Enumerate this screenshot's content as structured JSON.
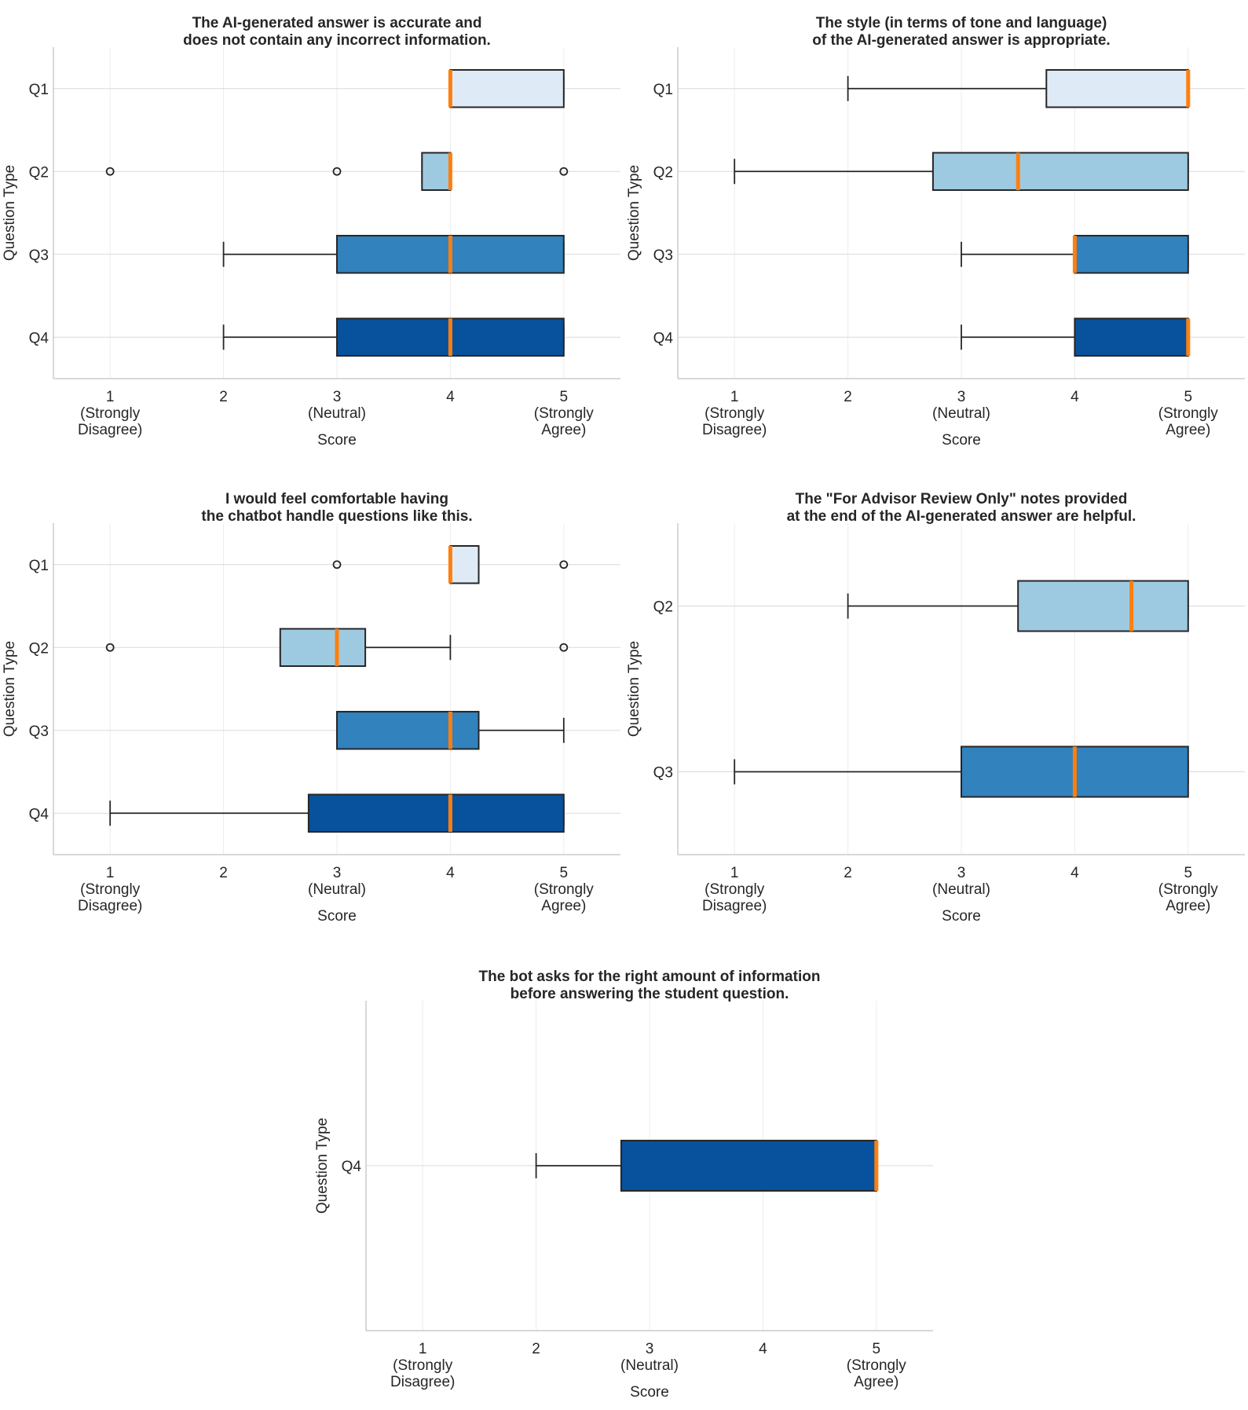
{
  "colors": {
    "Q1": "#deebf7",
    "Q2": "#9ecae1",
    "Q3": "#3182bd",
    "Q4": "#08519c",
    "median": "#ff7f0e",
    "outline": "#262626",
    "grid": "#d9d9d9",
    "spine": "#cccccc"
  },
  "chart_data": [
    {
      "type": "box",
      "orientation": "horizontal",
      "title_lines": [
        "The AI-generated answer is accurate and",
        "does not contain any incorrect information."
      ],
      "xlabel": "Score",
      "ylabel": "Question Type",
      "xlim": [
        0.5,
        5.5
      ],
      "x_ticks": [
        {
          "value": 1,
          "lines": [
            "1",
            "(Strongly",
            "Disagree)"
          ]
        },
        {
          "value": 2,
          "lines": [
            "2"
          ]
        },
        {
          "value": 3,
          "lines": [
            "3",
            "(Neutral)"
          ]
        },
        {
          "value": 4,
          "lines": [
            "4"
          ]
        },
        {
          "value": 5,
          "lines": [
            "5",
            "(Strongly",
            "Agree)"
          ]
        }
      ],
      "categories": [
        "Q1",
        "Q2",
        "Q3",
        "Q4"
      ],
      "series": [
        {
          "category": "Q1",
          "whisker_low": 4,
          "q1": 4,
          "median": 4,
          "q3": 5,
          "whisker_high": 5,
          "outliers": []
        },
        {
          "category": "Q2",
          "whisker_low": 3.75,
          "q1": 3.75,
          "median": 4,
          "q3": 4,
          "whisker_high": 4,
          "outliers": [
            1,
            3,
            5
          ]
        },
        {
          "category": "Q3",
          "whisker_low": 2,
          "q1": 3,
          "median": 4,
          "q3": 5,
          "whisker_high": 5,
          "outliers": []
        },
        {
          "category": "Q4",
          "whisker_low": 2,
          "q1": 3,
          "median": 4,
          "q3": 5,
          "whisker_high": 5,
          "outliers": []
        }
      ]
    },
    {
      "type": "box",
      "orientation": "horizontal",
      "title_lines": [
        "The style (in terms of tone and language)",
        "of the AI-generated answer is appropriate."
      ],
      "xlabel": "Score",
      "ylabel": "Question Type",
      "xlim": [
        0.5,
        5.5
      ],
      "x_ticks": [
        {
          "value": 1,
          "lines": [
            "1",
            "(Strongly",
            "Disagree)"
          ]
        },
        {
          "value": 2,
          "lines": [
            "2"
          ]
        },
        {
          "value": 3,
          "lines": [
            "3",
            "(Neutral)"
          ]
        },
        {
          "value": 4,
          "lines": [
            "4"
          ]
        },
        {
          "value": 5,
          "lines": [
            "5",
            "(Strongly",
            "Agree)"
          ]
        }
      ],
      "categories": [
        "Q1",
        "Q2",
        "Q3",
        "Q4"
      ],
      "series": [
        {
          "category": "Q1",
          "whisker_low": 2,
          "q1": 3.75,
          "median": 5,
          "q3": 5,
          "whisker_high": 5,
          "outliers": []
        },
        {
          "category": "Q2",
          "whisker_low": 1,
          "q1": 2.75,
          "median": 3.5,
          "q3": 5,
          "whisker_high": 5,
          "outliers": []
        },
        {
          "category": "Q3",
          "whisker_low": 3,
          "q1": 4,
          "median": 4,
          "q3": 5,
          "whisker_high": 5,
          "outliers": []
        },
        {
          "category": "Q4",
          "whisker_low": 3,
          "q1": 4,
          "median": 5,
          "q3": 5,
          "whisker_high": 5,
          "outliers": []
        }
      ]
    },
    {
      "type": "box",
      "orientation": "horizontal",
      "title_lines": [
        "I would feel comfortable having",
        "the chatbot handle questions like this."
      ],
      "xlabel": "Score",
      "ylabel": "Question Type",
      "xlim": [
        0.5,
        5.5
      ],
      "x_ticks": [
        {
          "value": 1,
          "lines": [
            "1",
            "(Strongly",
            "Disagree)"
          ]
        },
        {
          "value": 2,
          "lines": [
            "2"
          ]
        },
        {
          "value": 3,
          "lines": [
            "3",
            "(Neutral)"
          ]
        },
        {
          "value": 4,
          "lines": [
            "4"
          ]
        },
        {
          "value": 5,
          "lines": [
            "5",
            "(Strongly",
            "Agree)"
          ]
        }
      ],
      "categories": [
        "Q1",
        "Q2",
        "Q3",
        "Q4"
      ],
      "series": [
        {
          "category": "Q1",
          "whisker_low": 4,
          "q1": 4,
          "median": 4,
          "q3": 4.25,
          "whisker_high": 4.25,
          "outliers": [
            3,
            5
          ]
        },
        {
          "category": "Q2",
          "whisker_low": 2.5,
          "q1": 2.5,
          "median": 3,
          "q3": 3.25,
          "whisker_high": 4,
          "outliers": [
            1,
            5
          ]
        },
        {
          "category": "Q3",
          "whisker_low": 3,
          "q1": 3,
          "median": 4,
          "q3": 4.25,
          "whisker_high": 5,
          "outliers": []
        },
        {
          "category": "Q4",
          "whisker_low": 1,
          "q1": 2.75,
          "median": 4,
          "q3": 5,
          "whisker_high": 5,
          "outliers": []
        }
      ]
    },
    {
      "type": "box",
      "orientation": "horizontal",
      "title_lines": [
        "The \"For Advisor Review Only\" notes provided",
        "at the end of the AI-generated answer are helpful."
      ],
      "xlabel": "Score",
      "ylabel": "Question Type",
      "xlim": [
        0.5,
        5.5
      ],
      "x_ticks": [
        {
          "value": 1,
          "lines": [
            "1",
            "(Strongly",
            "Disagree)"
          ]
        },
        {
          "value": 2,
          "lines": [
            "2"
          ]
        },
        {
          "value": 3,
          "lines": [
            "3",
            "(Neutral)"
          ]
        },
        {
          "value": 4,
          "lines": [
            "4"
          ]
        },
        {
          "value": 5,
          "lines": [
            "5",
            "(Strongly",
            "Agree)"
          ]
        }
      ],
      "categories": [
        "Q2",
        "Q3"
      ],
      "series": [
        {
          "category": "Q2",
          "whisker_low": 2,
          "q1": 3.5,
          "median": 4.5,
          "q3": 5,
          "whisker_high": 5,
          "outliers": []
        },
        {
          "category": "Q3",
          "whisker_low": 1,
          "q1": 3,
          "median": 4,
          "q3": 5,
          "whisker_high": 5,
          "outliers": []
        }
      ]
    },
    {
      "type": "box",
      "orientation": "horizontal",
      "title_lines": [
        "The bot asks for the right amount of information",
        "before answering the student question."
      ],
      "xlabel": "Score",
      "ylabel": "Question Type",
      "xlim": [
        0.5,
        5.5
      ],
      "x_ticks": [
        {
          "value": 1,
          "lines": [
            "1",
            "(Strongly",
            "Disagree)"
          ]
        },
        {
          "value": 2,
          "lines": [
            "2"
          ]
        },
        {
          "value": 3,
          "lines": [
            "3",
            "(Neutral)"
          ]
        },
        {
          "value": 4,
          "lines": [
            "4"
          ]
        },
        {
          "value": 5,
          "lines": [
            "5",
            "(Strongly",
            "Agree)"
          ]
        }
      ],
      "categories": [
        "Q4"
      ],
      "series": [
        {
          "category": "Q4",
          "whisker_low": 2,
          "q1": 2.75,
          "median": 5,
          "q3": 5,
          "whisker_high": 5,
          "outliers": []
        }
      ]
    }
  ]
}
